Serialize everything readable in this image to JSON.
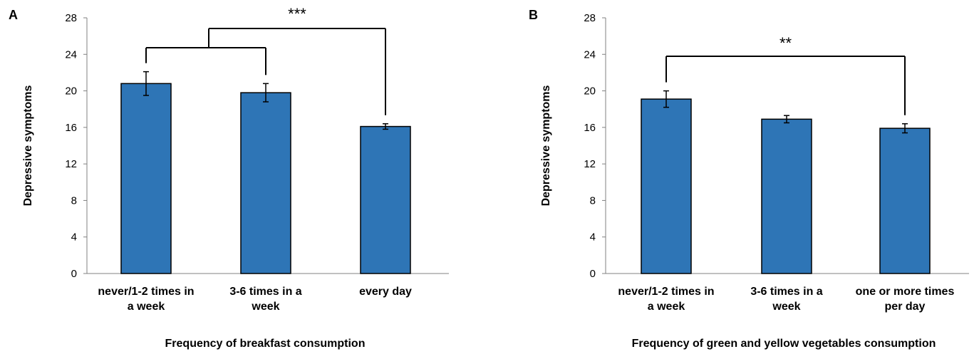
{
  "chart_data": [
    {
      "type": "bar",
      "panel_label": "A",
      "categories": [
        [
          "never/1-2 times in",
          "a week"
        ],
        [
          "3-6 times in a",
          "week"
        ],
        [
          "every day"
        ]
      ],
      "values": [
        20.8,
        19.8,
        16.1
      ],
      "errors": [
        1.3,
        1.0,
        0.3
      ],
      "xlabel": "Frequency of breakfast consumption",
      "ylabel": "Depressive symptoms",
      "ylim": [
        0,
        28
      ],
      "yticks": [
        0,
        4,
        8,
        12,
        16,
        20,
        24,
        28
      ],
      "grid": false,
      "bar_color": "#2e75b6",
      "annotations": [
        {
          "text": "***",
          "from_group": [
            0,
            1
          ],
          "to": 2
        }
      ]
    },
    {
      "type": "bar",
      "panel_label": "B",
      "categories": [
        [
          "never/1-2 times in",
          "a week"
        ],
        [
          "3-6 times in a",
          "week"
        ],
        [
          "one or more times",
          "per day"
        ]
      ],
      "values": [
        19.1,
        16.9,
        15.9
      ],
      "errors": [
        0.9,
        0.4,
        0.5
      ],
      "xlabel": "Frequency of green and yellow vegetables consumption",
      "ylabel": "Depressive symptoms",
      "ylim": [
        0,
        28
      ],
      "yticks": [
        0,
        4,
        8,
        12,
        16,
        20,
        24,
        28
      ],
      "grid": false,
      "bar_color": "#2e75b6",
      "annotations": [
        {
          "text": "**",
          "from": 0,
          "to": 2
        }
      ]
    }
  ]
}
